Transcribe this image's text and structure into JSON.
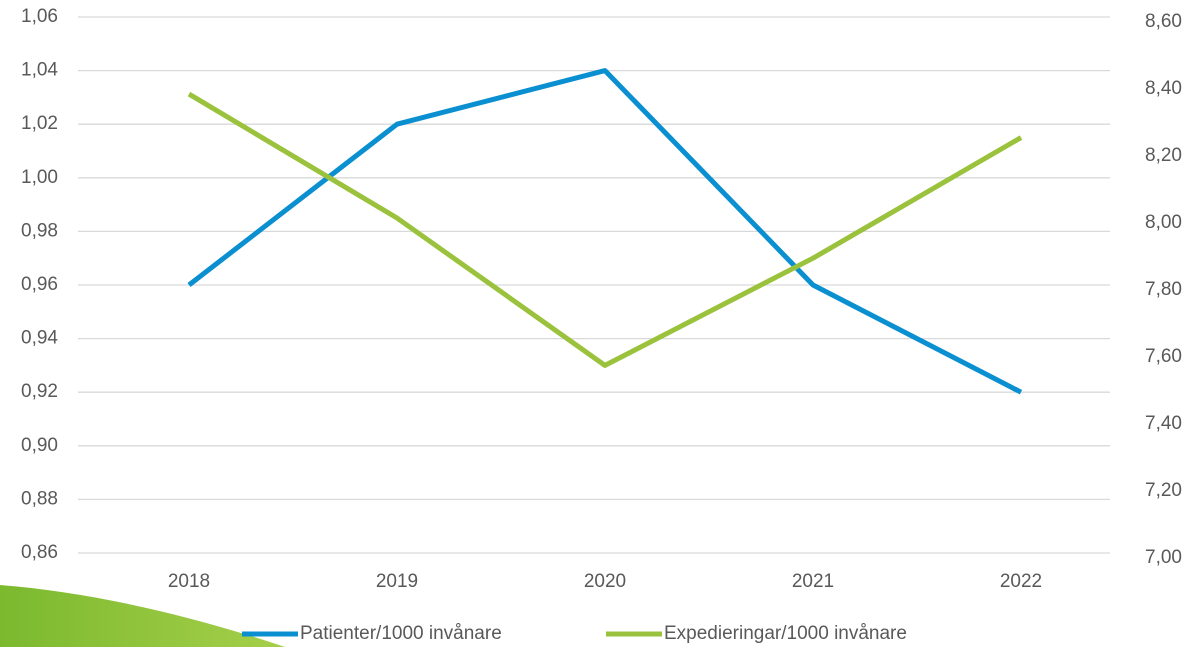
{
  "chart_data": {
    "type": "line",
    "categories": [
      "2018",
      "2019",
      "2020",
      "2021",
      "2022"
    ],
    "series": [
      {
        "name": "Patienter/1000 invånare",
        "color": "#0a8fd0",
        "values": [
          0.96,
          1.02,
          1.04,
          0.96,
          0.92
        ]
      },
      {
        "name": "Expedieringar/1000 invånare",
        "color": "#9bc23c",
        "axis": "y2",
        "values": [
          8.37,
          8.0,
          7.56,
          7.88,
          8.24
        ]
      }
    ],
    "ylim": [
      0.86,
      1.06
    ],
    "yticks": [
      {
        "value": 0.86,
        "label": "0,86"
      },
      {
        "value": 0.88,
        "label": "0,88"
      },
      {
        "value": 0.9,
        "label": "0,90"
      },
      {
        "value": 0.92,
        "label": "0,92"
      },
      {
        "value": 0.94,
        "label": "0,94"
      },
      {
        "value": 0.96,
        "label": "0,96"
      },
      {
        "value": 0.98,
        "label": "0,98"
      },
      {
        "value": 1.0,
        "label": "1,00"
      },
      {
        "value": 1.02,
        "label": "1,02"
      },
      {
        "value": 1.04,
        "label": "1,04"
      },
      {
        "value": 1.06,
        "label": "1,06"
      }
    ],
    "y2lim": [
      7.0,
      8.6
    ],
    "y2ticks": [
      {
        "value": 7.0,
        "label": "7,00"
      },
      {
        "value": 7.2,
        "label": "7,20"
      },
      {
        "value": 7.4,
        "label": "7,40"
      },
      {
        "value": 7.6,
        "label": "7,60"
      },
      {
        "value": 7.8,
        "label": "7,80"
      },
      {
        "value": 8.0,
        "label": "8,00"
      },
      {
        "value": 8.2,
        "label": "8,20"
      },
      {
        "value": 8.4,
        "label": "8,40"
      },
      {
        "value": 8.6,
        "label": "8,60"
      }
    ],
    "grid": true,
    "legend": "bottom"
  }
}
